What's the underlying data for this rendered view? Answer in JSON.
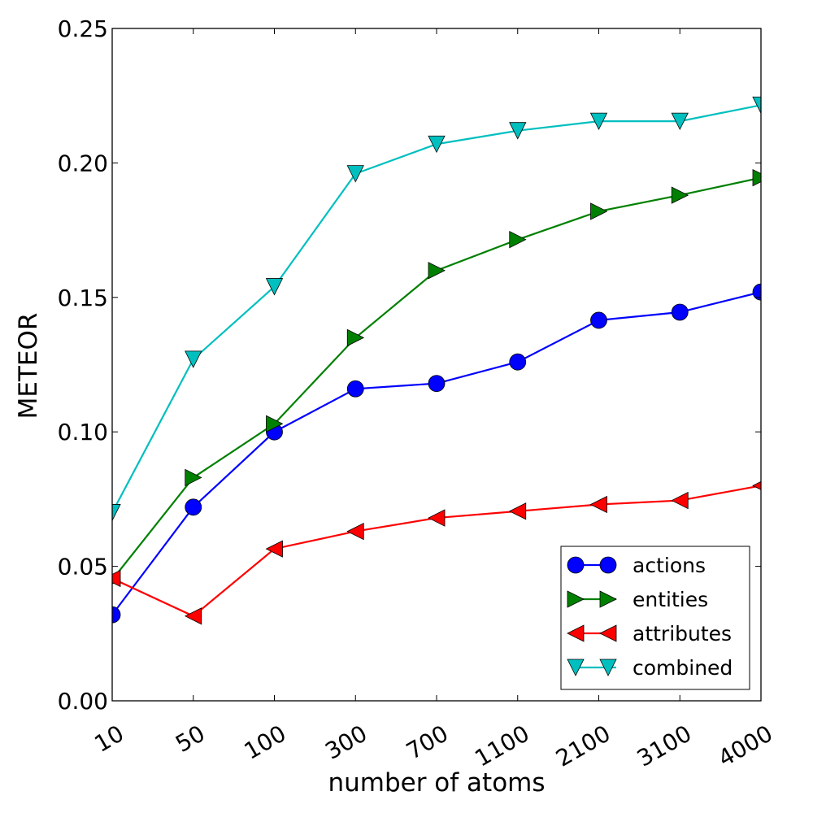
{
  "chart_data": {
    "type": "line",
    "title": "",
    "xlabel": "number of atoms",
    "ylabel": "METEOR",
    "categories": [
      "10",
      "50",
      "100",
      "300",
      "700",
      "1100",
      "2100",
      "3100",
      "4000"
    ],
    "ylim": [
      0.0,
      0.25
    ],
    "yticks": [
      "0.00",
      "0.05",
      "0.10",
      "0.15",
      "0.20",
      "0.25"
    ],
    "ytick_values": [
      0.0,
      0.05,
      0.1,
      0.15,
      0.2,
      0.25
    ],
    "grid": false,
    "legend_position": "bottom-right",
    "series": [
      {
        "name": "actions",
        "color": "#0000ff",
        "marker": "circle",
        "values": [
          0.032,
          0.072,
          0.1,
          0.116,
          0.118,
          0.126,
          0.1415,
          0.1445,
          0.152
        ]
      },
      {
        "name": "entities",
        "color": "#008000",
        "marker": "triangle-right",
        "values": [
          0.045,
          0.083,
          0.103,
          0.135,
          0.16,
          0.1715,
          0.182,
          0.188,
          0.1945
        ]
      },
      {
        "name": "attributes",
        "color": "#ff0000",
        "marker": "triangle-left",
        "values": [
          0.0455,
          0.0315,
          0.0565,
          0.063,
          0.068,
          0.0705,
          0.073,
          0.0745,
          0.08
        ]
      },
      {
        "name": "combined",
        "color": "#00bfbf",
        "marker": "triangle-down",
        "values": [
          0.07,
          0.127,
          0.154,
          0.196,
          0.207,
          0.212,
          0.2155,
          0.2155,
          0.2215
        ]
      }
    ]
  }
}
